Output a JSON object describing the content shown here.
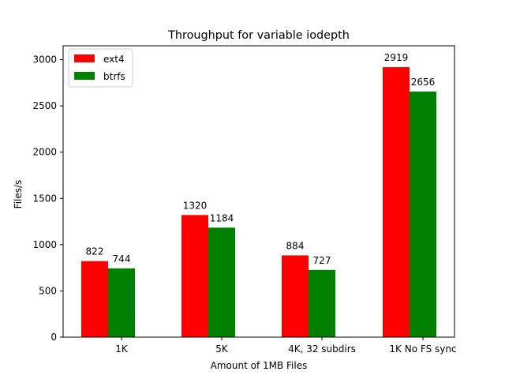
{
  "chart_data": {
    "type": "bar",
    "title": "Throughput for variable iodepth",
    "xlabel": "Amount of 1MB Files",
    "ylabel": "Files/s",
    "categories": [
      "1K",
      "5K",
      "4K, 32 subdirs",
      "1K No FS sync"
    ],
    "series": [
      {
        "name": "ext4",
        "color": "#ff0000",
        "values": [
          822,
          1320,
          884,
          2919
        ]
      },
      {
        "name": "btrfs",
        "color": "#008000",
        "values": [
          744,
          1184,
          727,
          2656
        ]
      }
    ],
    "ylim": [
      0,
      3000
    ],
    "yticks": [
      0,
      500,
      1000,
      1500,
      2000,
      2500,
      3000
    ],
    "legend": "top-left",
    "grid": false
  }
}
